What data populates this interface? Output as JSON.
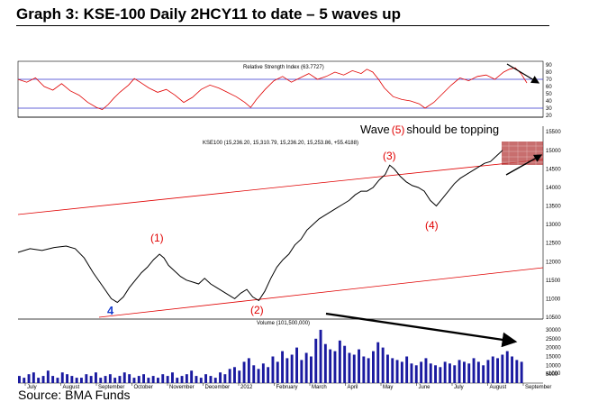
{
  "title": "Graph 3: KSE-100 Daily 2HCY11 to date – 5 waves up",
  "source": "Source: BMA Funds",
  "chart_data": {
    "type": "line",
    "panels": {
      "rsi": {
        "label": "Relative Strength Index (63.7727)",
        "ylim": [
          20,
          90
        ],
        "ticks": [
          90,
          80,
          70,
          60,
          50,
          40,
          30,
          20
        ],
        "levels": [
          70,
          30
        ],
        "line_color": "#e00000"
      },
      "price": {
        "label": "KSE100 (15,236.20, 15,310.79, 15,236.20, 15,253.86, +55.4188)",
        "ylim": [
          10500,
          15700
        ],
        "ticks": [
          15500,
          15000,
          14500,
          14000,
          13500,
          13000,
          12500,
          12000,
          11500,
          11000,
          10500
        ],
        "color": "#000000"
      },
      "volume": {
        "label": "Volume (101,500,000)",
        "ylim": [
          0,
          32000
        ],
        "ticks": [
          30000,
          25000,
          20000,
          15000,
          10000,
          5000
        ],
        "unit_label": "x1000",
        "color": "#1a1aa0"
      }
    },
    "x_labels": [
      "July",
      "August",
      "September",
      "October",
      "November",
      "December",
      "2012",
      "February",
      "March",
      "April",
      "May",
      "June",
      "July",
      "August",
      "September"
    ],
    "price_series": [
      [
        0,
        12250
      ],
      [
        8,
        12350
      ],
      [
        16,
        12300
      ],
      [
        24,
        12380
      ],
      [
        32,
        12420
      ],
      [
        38,
        12350
      ],
      [
        44,
        12100
      ],
      [
        50,
        11700
      ],
      [
        56,
        11350
      ],
      [
        62,
        11000
      ],
      [
        66,
        10900
      ],
      [
        70,
        11050
      ],
      [
        74,
        11300
      ],
      [
        78,
        11500
      ],
      [
        82,
        11700
      ],
      [
        86,
        11850
      ],
      [
        90,
        12050
      ],
      [
        94,
        12200
      ],
      [
        97,
        12100
      ],
      [
        100,
        11900
      ],
      [
        104,
        11750
      ],
      [
        108,
        11600
      ],
      [
        112,
        11500
      ],
      [
        116,
        11450
      ],
      [
        120,
        11400
      ],
      [
        124,
        11550
      ],
      [
        128,
        11400
      ],
      [
        132,
        11300
      ],
      [
        136,
        11200
      ],
      [
        140,
        11100
      ],
      [
        144,
        11000
      ],
      [
        148,
        11150
      ],
      [
        152,
        11250
      ],
      [
        156,
        11050
      ],
      [
        160,
        10950
      ],
      [
        164,
        11200
      ],
      [
        168,
        11550
      ],
      [
        172,
        11850
      ],
      [
        176,
        12050
      ],
      [
        180,
        12200
      ],
      [
        184,
        12450
      ],
      [
        188,
        12600
      ],
      [
        192,
        12850
      ],
      [
        196,
        13000
      ],
      [
        200,
        13150
      ],
      [
        204,
        13250
      ],
      [
        208,
        13350
      ],
      [
        212,
        13450
      ],
      [
        216,
        13550
      ],
      [
        220,
        13650
      ],
      [
        224,
        13800
      ],
      [
        228,
        13900
      ],
      [
        232,
        13900
      ],
      [
        236,
        14000
      ],
      [
        240,
        14200
      ],
      [
        244,
        14350
      ],
      [
        247,
        14600
      ],
      [
        250,
        14500
      ],
      [
        254,
        14300
      ],
      [
        258,
        14150
      ],
      [
        262,
        14050
      ],
      [
        266,
        14000
      ],
      [
        270,
        13900
      ],
      [
        274,
        13650
      ],
      [
        278,
        13500
      ],
      [
        282,
        13700
      ],
      [
        286,
        13900
      ],
      [
        290,
        14100
      ],
      [
        294,
        14250
      ],
      [
        298,
        14350
      ],
      [
        302,
        14450
      ],
      [
        306,
        14550
      ],
      [
        310,
        14650
      ],
      [
        314,
        14700
      ],
      [
        318,
        14850
      ],
      [
        322,
        15000
      ]
    ],
    "rsi_series": [
      [
        0,
        70
      ],
      [
        6,
        66
      ],
      [
        12,
        72
      ],
      [
        18,
        60
      ],
      [
        24,
        55
      ],
      [
        30,
        64
      ],
      [
        36,
        54
      ],
      [
        42,
        48
      ],
      [
        48,
        38
      ],
      [
        54,
        31
      ],
      [
        58,
        28
      ],
      [
        62,
        35
      ],
      [
        66,
        44
      ],
      [
        70,
        52
      ],
      [
        76,
        62
      ],
      [
        80,
        71
      ],
      [
        84,
        66
      ],
      [
        90,
        58
      ],
      [
        96,
        52
      ],
      [
        102,
        56
      ],
      [
        108,
        48
      ],
      [
        114,
        38
      ],
      [
        120,
        45
      ],
      [
        126,
        56
      ],
      [
        132,
        62
      ],
      [
        138,
        58
      ],
      [
        144,
        52
      ],
      [
        150,
        46
      ],
      [
        156,
        38
      ],
      [
        160,
        31
      ],
      [
        164,
        42
      ],
      [
        170,
        56
      ],
      [
        176,
        68
      ],
      [
        182,
        74
      ],
      [
        188,
        66
      ],
      [
        194,
        72
      ],
      [
        200,
        78
      ],
      [
        206,
        70
      ],
      [
        212,
        74
      ],
      [
        218,
        80
      ],
      [
        224,
        76
      ],
      [
        230,
        82
      ],
      [
        236,
        78
      ],
      [
        240,
        84
      ],
      [
        244,
        80
      ],
      [
        248,
        70
      ],
      [
        252,
        58
      ],
      [
        258,
        46
      ],
      [
        264,
        42
      ],
      [
        270,
        40
      ],
      [
        276,
        36
      ],
      [
        280,
        30
      ],
      [
        286,
        38
      ],
      [
        292,
        50
      ],
      [
        298,
        62
      ],
      [
        304,
        72
      ],
      [
        310,
        68
      ],
      [
        316,
        74
      ],
      [
        322,
        76
      ],
      [
        328,
        70
      ],
      [
        334,
        80
      ],
      [
        338,
        84
      ],
      [
        342,
        86
      ],
      [
        346,
        78
      ],
      [
        350,
        65
      ]
    ],
    "volume_series": [
      4,
      3,
      5,
      6,
      3,
      4,
      7,
      4,
      3,
      6,
      5,
      4,
      3,
      3,
      5,
      4,
      6,
      3,
      4,
      5,
      3,
      4,
      6,
      5,
      3,
      4,
      5,
      3,
      4,
      3,
      5,
      4,
      6,
      3,
      4,
      5,
      7,
      4,
      3,
      5,
      4,
      3,
      6,
      5,
      8,
      9,
      7,
      12,
      14,
      10,
      8,
      11,
      9,
      15,
      12,
      18,
      14,
      16,
      20,
      13,
      17,
      15,
      25,
      30,
      22,
      19,
      18,
      24,
      21,
      17,
      16,
      19,
      15,
      14,
      18,
      23,
      20,
      16,
      14,
      13,
      12,
      15,
      11,
      10,
      12,
      14,
      11,
      10,
      9,
      12,
      11,
      10,
      13,
      12,
      11,
      14,
      12,
      10,
      13,
      15,
      14,
      16,
      18,
      15,
      13,
      12
    ],
    "waves": [
      {
        "label": "4",
        "style": "blue-bold"
      },
      {
        "label": "(1)"
      },
      {
        "label": "(2)"
      },
      {
        "label": "(3)"
      },
      {
        "label": "(4)"
      }
    ],
    "annotation": {
      "prefix": "Wave",
      "wave": "(5)",
      "suffix": "should be topping"
    },
    "channel_color": "#e00000",
    "target_zone_color": "#b03030"
  }
}
